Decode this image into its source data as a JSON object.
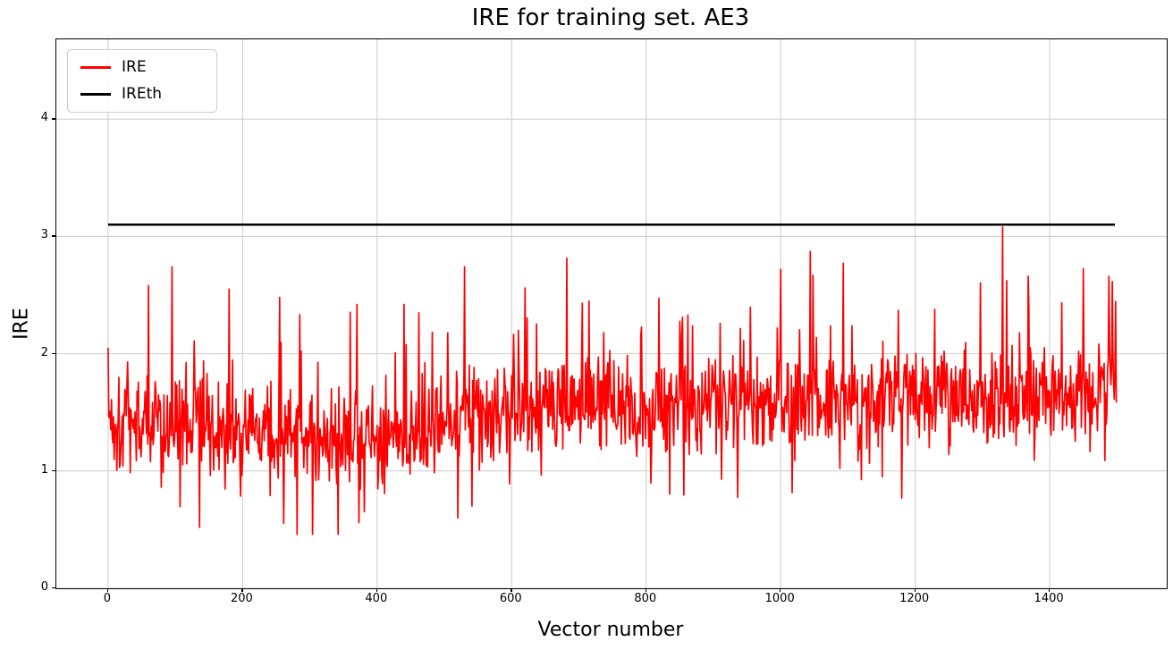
{
  "chart_data": {
    "type": "line",
    "title": "IRE for training set. AE3",
    "xlabel": "Vector number",
    "ylabel": "IRE",
    "xlim": [
      -77,
      1574
    ],
    "ylim": [
      0,
      4.68
    ],
    "xticks": [
      0,
      200,
      400,
      600,
      800,
      1000,
      1200,
      1400
    ],
    "yticks": [
      0,
      1,
      2,
      3,
      4
    ],
    "grid": true,
    "grid_color": "#cccccc",
    "background_color": "#ffffff",
    "spine_color": "#000000",
    "legend": {
      "position": "upper-left",
      "entries": [
        {
          "label": "IRE",
          "color": "#ff0000"
        },
        {
          "label": "IREth",
          "color": "#000000"
        }
      ]
    },
    "series": [
      {
        "name": "IRE",
        "color": "#ff0000",
        "line_width": 1.7,
        "n_points": 1500,
        "x_start": 0,
        "x_end": 1499,
        "stats": {
          "min": 0.46,
          "max": 3.08,
          "mean": 1.55,
          "typical_band": [
            1.0,
            2.0
          ]
        },
        "synthesis": {
          "seed": 1337,
          "mean_envelope": [
            [
              0,
              1.42
            ],
            [
              150,
              1.4
            ],
            [
              250,
              1.3
            ],
            [
              400,
              1.27
            ],
            [
              480,
              1.36
            ],
            [
              550,
              1.54
            ],
            [
              700,
              1.55
            ],
            [
              900,
              1.58
            ],
            [
              1100,
              1.65
            ],
            [
              1300,
              1.67
            ],
            [
              1499,
              1.68
            ]
          ],
          "jitter": [
            0.55,
            0.4
          ],
          "spike_prob": 0.05,
          "spike_mag": [
            0.3,
            0.75
          ],
          "dip_prob": 0.045,
          "dip_mag": [
            0.25,
            0.4
          ],
          "deep_dip_zone": [
            250,
            550
          ],
          "deep_dip_extra": 0.25,
          "clamp": [
            0.46,
            2.92
          ]
        },
        "notable_points": [
          [
            0,
            2.05
          ],
          [
            60,
            2.58
          ],
          [
            95,
            2.74
          ],
          [
            180,
            2.55
          ],
          [
            255,
            2.48
          ],
          [
            304,
            0.46
          ],
          [
            370,
            2.42
          ],
          [
            373,
            0.56
          ],
          [
            440,
            2.42
          ],
          [
            520,
            0.6
          ],
          [
            530,
            2.74
          ],
          [
            620,
            2.56
          ],
          [
            705,
            2.43
          ],
          [
            1000,
            2.72
          ],
          [
            1048,
            2.67
          ],
          [
            1180,
            0.77
          ],
          [
            1330,
            3.08
          ],
          [
            1368,
            2.66
          ],
          [
            1488,
            2.66
          ]
        ]
      },
      {
        "name": "IREth",
        "type": "constant",
        "color": "#000000",
        "line_width": 2.5,
        "value": 3.1,
        "x_start": 0,
        "x_end": 1497
      }
    ]
  }
}
